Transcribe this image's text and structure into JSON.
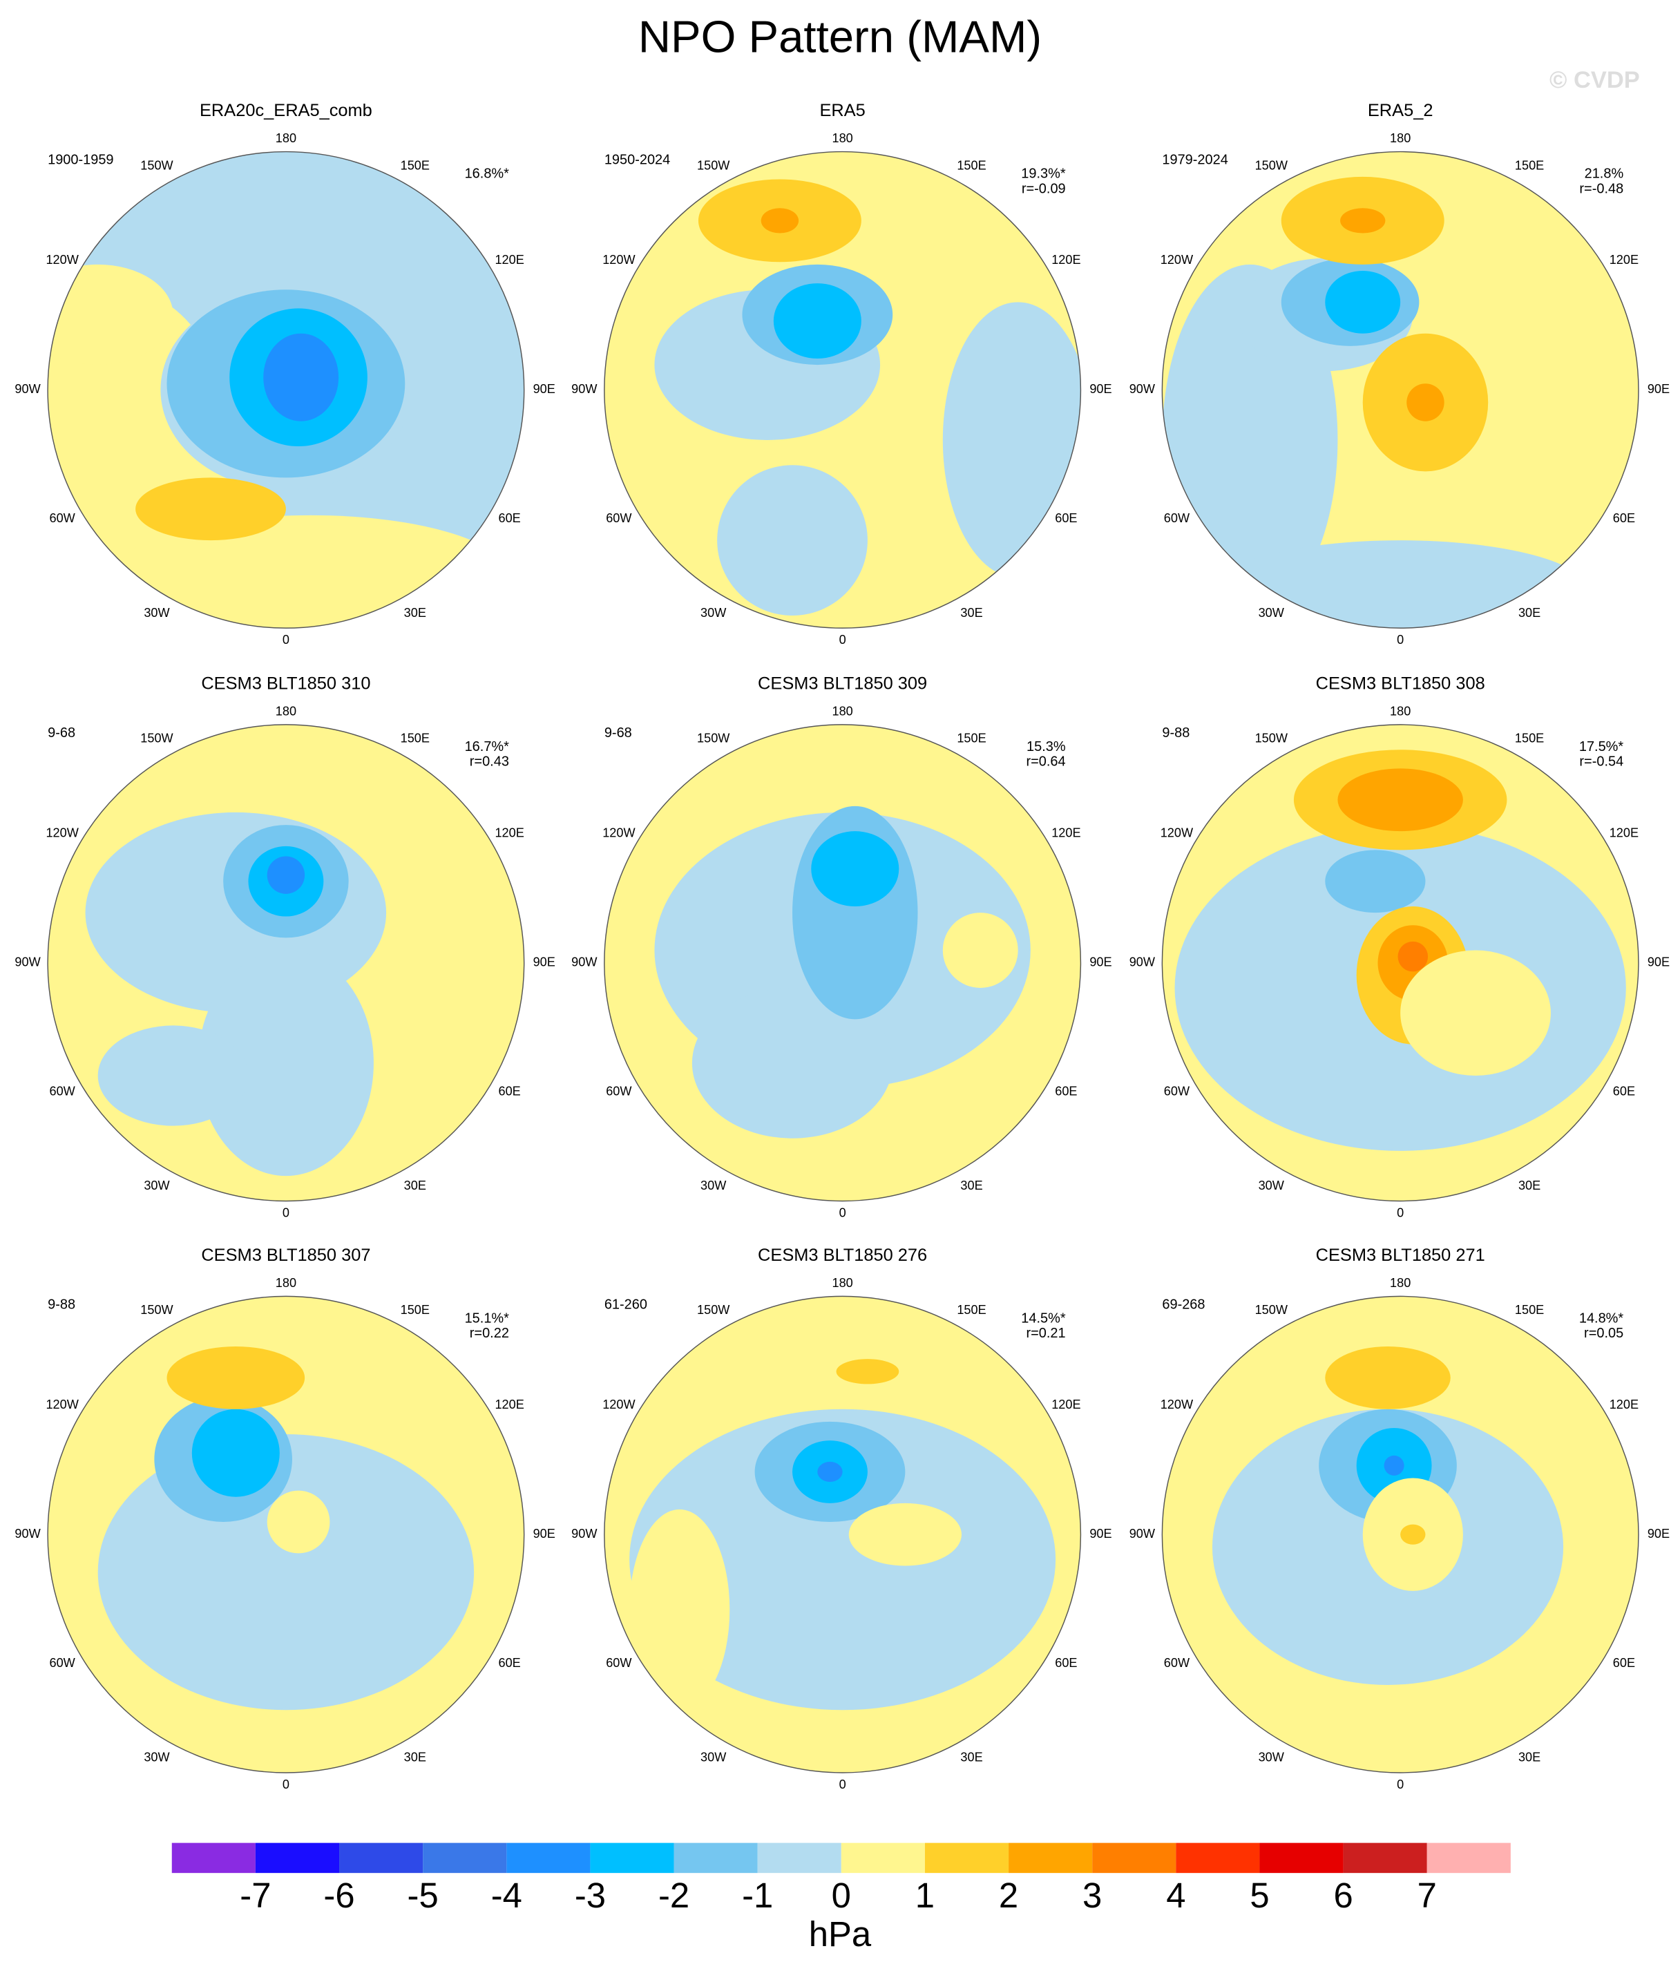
{
  "title": "NPO Pattern (MAM)",
  "watermark": "© CVDP",
  "lon_labels": [
    "180",
    "150E",
    "120E",
    "90E",
    "60E",
    "30E",
    "0",
    "30W",
    "60W",
    "90W",
    "120W",
    "150W"
  ],
  "panels": [
    {
      "title": "ERA20c_ERA5_comb",
      "period": "1900-1959",
      "variance": "16.8%*"
    },
    {
      "title": "ERA5",
      "period": "1950-2024",
      "variance": "19.3%*",
      "r": "r=-0.09"
    },
    {
      "title": "ERA5_2",
      "period": "1979-2024",
      "variance": "21.8%",
      "r": "r=-0.48"
    },
    {
      "title": "CESM3 BLT1850 310",
      "period": "9-68",
      "variance": "16.7%*",
      "r": "r=0.43"
    },
    {
      "title": "CESM3 BLT1850 309",
      "period": "9-68",
      "variance": "15.3%",
      "r": "r=0.64"
    },
    {
      "title": "CESM3 BLT1850 308",
      "period": "9-88",
      "variance": "17.5%*",
      "r": "r=-0.54"
    },
    {
      "title": "CESM3 BLT1850 307",
      "period": "9-88",
      "variance": "15.1%*",
      "r": "r=0.22"
    },
    {
      "title": "CESM3 BLT1850 276",
      "period": "61-260",
      "variance": "14.5%*",
      "r": "r=0.21"
    },
    {
      "title": "CESM3 BLT1850 271",
      "period": "69-268",
      "variance": "14.8%*",
      "r": "r=0.05"
    }
  ],
  "colorbar": {
    "colors": [
      "#8a2be2",
      "#1a0dff",
      "#2e4ae8",
      "#3a78e8",
      "#1e90ff",
      "#00bfff",
      "#75c6f0",
      "#b3dcf0",
      "#fff68f",
      "#ffd02a",
      "#ffa500",
      "#ff7f00",
      "#ff3200",
      "#e60000",
      "#cc1f1f",
      "#ffb0b0"
    ],
    "ticks": [
      -7,
      -6,
      -5,
      -4,
      -3,
      -2,
      -1,
      0,
      1,
      2,
      3,
      4,
      5,
      6,
      7
    ],
    "unit": "hPa"
  }
}
